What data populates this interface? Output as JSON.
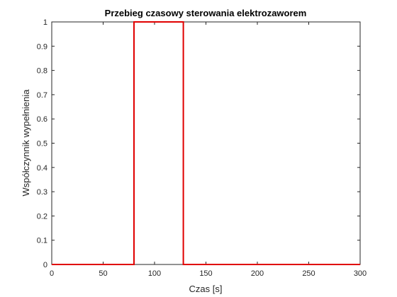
{
  "chart_data": {
    "type": "line",
    "title": "Przebieg czasowy sterowania elektrozaworem",
    "xlabel": "Czas [s]",
    "ylabel": "Współczynnik wypełnienia",
    "xlim": [
      0,
      300
    ],
    "ylim": [
      0,
      1
    ],
    "xticks": [
      0,
      50,
      100,
      150,
      200,
      250,
      300
    ],
    "yticks": [
      0,
      0.1,
      0.2,
      0.3,
      0.4,
      0.5,
      0.6,
      0.7,
      0.8,
      0.9,
      1
    ],
    "xtick_labels": [
      "0",
      "50",
      "100",
      "150",
      "200",
      "250",
      "300"
    ],
    "ytick_labels": [
      "0",
      "0.1",
      "0.2",
      "0.3",
      "0.4",
      "0.5",
      "0.6",
      "0.7",
      "0.8",
      "0.9",
      "1"
    ],
    "grid": false,
    "series": [
      {
        "color": "#e00000",
        "x": [
          0,
          80,
          80,
          128,
          128,
          300
        ],
        "y": [
          0,
          0,
          1,
          1,
          0,
          0
        ]
      }
    ]
  }
}
